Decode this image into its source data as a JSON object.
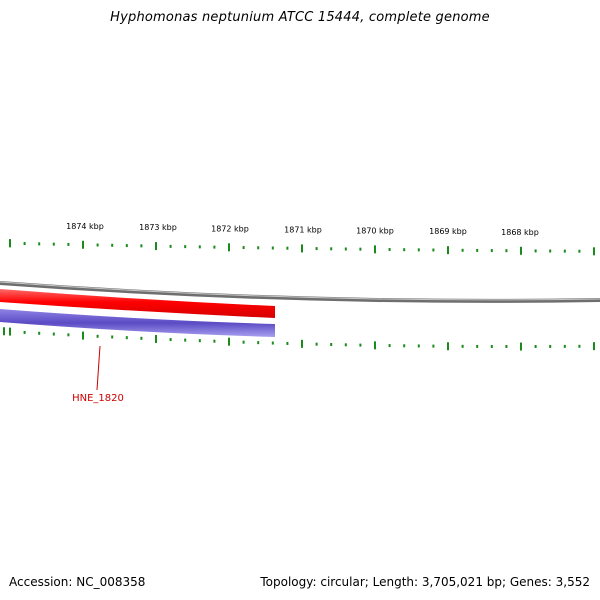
{
  "title": "Hyphomonas neptunium ATCC 15444, complete genome",
  "footer": {
    "accession": "Accession: NC_008358",
    "summary": "Topology: circular; Length: 3,705,021 bp; Genes: 3,552"
  },
  "ruler": {
    "labels": [
      "1874 kbp",
      "1873 kbp",
      "1872 kbp",
      "1871 kbp",
      "1870 kbp",
      "1869 kbp",
      "1868 kbp"
    ]
  },
  "genes": [
    {
      "label": "HNE_1820"
    }
  ],
  "colors": {
    "tick": "#1a8a1a",
    "forward_track": "#ff0000",
    "reverse_track": "#5b4bc4",
    "backbone": "#808080",
    "gene_label": "#cc0000"
  }
}
